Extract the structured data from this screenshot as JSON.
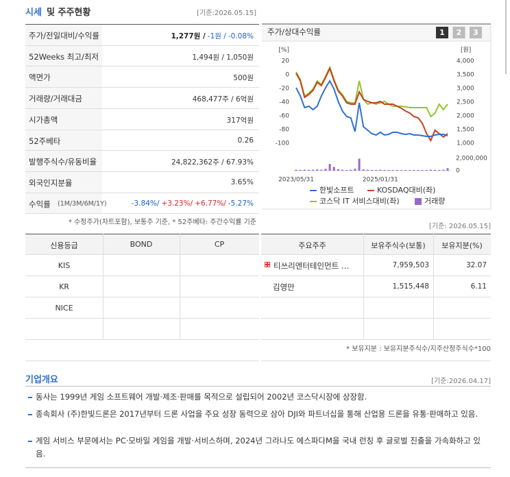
{
  "header": {
    "title_main": "시세",
    "title_rest": "및 주주현황",
    "date": "[기준:2026.05.15]"
  },
  "quote_table": {
    "rows": [
      {
        "label": "주가/전일대비/수익률",
        "parts": [
          {
            "text": "1,277원 /",
            "color": "#222222",
            "bold": true
          },
          {
            "text": "-1원 /",
            "color": "#1a5fc9"
          },
          {
            "text": "-0.08%",
            "color": "#1a5fc9"
          }
        ]
      },
      {
        "label": "52Weeks 최고/최저",
        "parts": [
          {
            "text": "1,494원 / 1,050원",
            "color": "#333333"
          }
        ]
      },
      {
        "label": "액면가",
        "parts": [
          {
            "text": "500원",
            "color": "#333333"
          }
        ]
      },
      {
        "label": "거래량/거래대금",
        "parts": [
          {
            "text": "468,477주 / 6억원",
            "color": "#333333"
          }
        ]
      },
      {
        "label": "시가총액",
        "parts": [
          {
            "text": "317억원",
            "color": "#333333"
          }
        ]
      },
      {
        "label": "52주베타",
        "parts": [
          {
            "text": "0.26",
            "color": "#333333"
          }
        ]
      },
      {
        "label": "발행주식수/유동비율",
        "parts": [
          {
            "text": "24,822,362주 / 67.93%",
            "color": "#333333"
          }
        ]
      },
      {
        "label": "외국인지분율",
        "parts": [
          {
            "text": "3.65%",
            "color": "#333333"
          }
        ]
      },
      {
        "label": "수익률",
        "sublabel": "(1M/3M/6M/1Y)",
        "parts": [
          {
            "text": "-3.84%/",
            "color": "#1a5fc9"
          },
          {
            "text": "+3.23%/",
            "color": "#d9262c"
          },
          {
            "text": "+6.77%/",
            "color": "#d9262c"
          },
          {
            "text": "-5.27%",
            "color": "#1a5fc9"
          }
        ]
      }
    ],
    "note": "* 수정주가(차트포함), 보통주 기준, * 52주베타: 주간수익률 기준"
  },
  "chart_data": {
    "type": "line",
    "title": "주가/상대수익률",
    "buttons": [
      "1",
      "2",
      "3"
    ],
    "y_label": "[%]",
    "y2_label": "[원]",
    "categories": [
      "2023/05/31",
      null,
      null,
      null,
      null,
      null,
      null,
      null,
      null,
      null,
      null,
      null,
      null,
      null,
      null,
      null,
      null,
      null,
      null,
      null,
      "2025/01/31",
      null,
      null,
      null,
      null,
      null,
      null,
      null,
      null,
      null,
      null,
      null,
      null,
      null,
      null,
      null,
      null
    ],
    "ylim": [
      -100,
      20
    ],
    "yticks": [
      20,
      0,
      -20,
      -40,
      -60,
      -80,
      -100
    ],
    "y2lim": [
      1000,
      4000
    ],
    "y2ticks": [
      {
        "value": 4000,
        "label": "4,000"
      },
      {
        "value": 3500,
        "label": "3,500"
      },
      {
        "value": 3000,
        "label": "3,000"
      },
      {
        "value": 2500,
        "label": "2,500"
      },
      {
        "value": 2000,
        "label": "2,000"
      },
      {
        "value": 1500,
        "label": "1,500"
      },
      {
        "value": 1000,
        "label": "1,000"
      }
    ],
    "y3lim": [
      0,
      2000000
    ],
    "y3ticks": [
      {
        "value": 2000000,
        "label": "2,000,000"
      },
      0
    ],
    "series": [
      {
        "name": "한빛소프트",
        "color": "#2f6fd0",
        "axis": "y2",
        "values": [
          3025,
          2725,
          2300,
          2350,
          2225,
          2350,
          2725,
          3025,
          3275,
          2975,
          2525,
          2175,
          1975,
          1925,
          1425,
          2475,
          1600,
          1475,
          1350,
          1300,
          1400,
          1300,
          1325,
          1400,
          1400,
          1350,
          1325,
          1350,
          1300,
          1300,
          1275,
          1250,
          1250,
          1300,
          1325,
          1325,
          1275
        ]
      },
      {
        "name": "KOSDAQ대비(좌)",
        "color": "#c9401e",
        "values": [
          2,
          -9,
          -33,
          -29,
          -23,
          -11,
          -16,
          -4,
          9,
          -9,
          -24,
          -31,
          -41,
          -43,
          -43,
          -25,
          -36,
          -39,
          -41,
          -41,
          -39,
          -43,
          -43,
          -43,
          -46,
          -49,
          -53,
          -56,
          -61,
          -63,
          -71,
          -86,
          -96,
          -81,
          -86,
          -91,
          -86
        ]
      },
      {
        "name": "코스닥 IT 서비스대비(좌)",
        "color": "#93c42a",
        "values": [
          4,
          -7,
          -31,
          -27,
          -21,
          -9,
          -14,
          -2,
          11,
          -7,
          -22,
          -29,
          -39,
          -41,
          -41,
          -9,
          -36,
          -43,
          -41,
          -43,
          -41,
          -39,
          -43,
          -46,
          -46,
          -46,
          -47,
          -48,
          -48,
          -48,
          -48,
          -48,
          -61,
          -56,
          -43,
          -51,
          -43
        ]
      }
    ],
    "volume": {
      "name": "거래량",
      "color": "#9966cc",
      "values": [
        150000,
        120000,
        150000,
        130000,
        160000,
        200000,
        150000,
        300000,
        1100000,
        600000,
        250000,
        150000,
        120000,
        150000,
        300000,
        1950000,
        200000,
        150000,
        120000,
        110000,
        150000,
        120000,
        100000,
        110000,
        120000,
        100000,
        110000,
        100000,
        120000,
        110000,
        100000,
        120000,
        150000,
        130000,
        120000,
        150000,
        400000
      ]
    }
  },
  "credit": {
    "headers": [
      "신용등급",
      "BOND",
      "CP"
    ],
    "rows": [
      [
        "KIS"
      ],
      [
        "KR"
      ],
      [
        "NICE"
      ]
    ]
  },
  "holders": {
    "date": "[기준: 2026.05.15]",
    "headers": [
      "주요주주",
      "보유주식수(보통)",
      "보유지분(%)"
    ],
    "rows": [
      [
        "티쓰리엔터테인먼트 …",
        "7,959,503",
        "32.07"
      ],
      [
        "김영만",
        "1,515,448",
        "6.11"
      ]
    ],
    "note": "* 보유지분 : 보유지분주식수/지주산정주식수*100"
  },
  "company": {
    "title": "기업개요",
    "date": "[기준:2026.04.17]",
    "bullets": [
      "동사는 1999년 게임 소프트웨어 개발·제조·판매를 목적으로 설립되어 2002년 코스닥시장에 상장함.",
      "종속회사 (주)한빛드론은 2017년부터 드론 사업을 주요 성장 동력으로 삼아 DJI와 파트너십을 통해 산업용 드론을 유통·판매하고 있음.",
      "게임 서비스 부문에서는 PC·모바일 게임을 개발·서비스하며, 2024년 그라나도 에스파다M을 국내 런칭 후 글로벌 진출을 가속화하고 있음."
    ]
  }
}
